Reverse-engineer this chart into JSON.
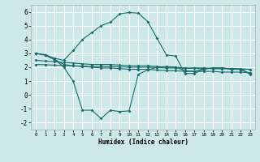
{
  "xlabel": "Humidex (Indice chaleur)",
  "xlim": [
    -0.5,
    23.5
  ],
  "ylim": [
    -2.5,
    6.5
  ],
  "xticks": [
    0,
    1,
    2,
    3,
    4,
    5,
    6,
    7,
    8,
    9,
    10,
    11,
    12,
    13,
    14,
    15,
    16,
    17,
    18,
    19,
    20,
    21,
    22,
    23
  ],
  "yticks": [
    -2,
    -1,
    0,
    1,
    2,
    3,
    4,
    5,
    6
  ],
  "bg_color": "#cde8e8",
  "grid_color": "#ffffff",
  "line_color": "#1a6b6b",
  "curve1_x": [
    0,
    1,
    2,
    3,
    4,
    5,
    6,
    7,
    8,
    9,
    10,
    11,
    12,
    13,
    14,
    15,
    16,
    17,
    18,
    19,
    20,
    21,
    22,
    23
  ],
  "curve1_y": [
    3.0,
    2.9,
    2.65,
    2.5,
    3.2,
    4.0,
    4.5,
    5.0,
    5.25,
    5.85,
    5.95,
    5.9,
    5.3,
    4.1,
    2.9,
    2.8,
    1.55,
    1.55,
    1.85,
    1.95,
    1.95,
    1.85,
    1.85,
    1.5
  ],
  "curve2_x": [
    0,
    1,
    2,
    3,
    4,
    5,
    6,
    7,
    8,
    9,
    10,
    11,
    12,
    13,
    14,
    15,
    16,
    17,
    18,
    19,
    20,
    21,
    22,
    23
  ],
  "curve2_y": [
    3.0,
    2.85,
    2.55,
    2.2,
    2.1,
    2.05,
    2.0,
    1.95,
    1.95,
    1.9,
    1.85,
    1.85,
    1.85,
    1.8,
    1.75,
    1.75,
    1.7,
    1.7,
    1.7,
    1.7,
    1.65,
    1.65,
    1.65,
    1.6
  ],
  "curve3_x": [
    0,
    1,
    2,
    3,
    4,
    5,
    6,
    7,
    8,
    9,
    10,
    11,
    12,
    13,
    14,
    15,
    16,
    17,
    18,
    19,
    20,
    21,
    22,
    23
  ],
  "curve3_y": [
    2.5,
    2.45,
    2.4,
    2.35,
    2.3,
    2.25,
    2.2,
    2.2,
    2.2,
    2.15,
    2.1,
    2.1,
    2.1,
    2.05,
    2.0,
    2.0,
    1.95,
    1.95,
    1.95,
    1.9,
    1.9,
    1.9,
    1.85,
    1.85
  ],
  "curve4_x": [
    0,
    1,
    2,
    3,
    4,
    5,
    6,
    7,
    8,
    9,
    10,
    11,
    12,
    13,
    14,
    15,
    16,
    17,
    18,
    19,
    20,
    21,
    22,
    23
  ],
  "curve4_y": [
    2.2,
    2.18,
    2.15,
    2.12,
    2.1,
    2.08,
    2.05,
    2.05,
    2.05,
    2.02,
    2.0,
    2.0,
    2.0,
    1.98,
    1.95,
    1.95,
    1.92,
    1.92,
    1.92,
    1.9,
    1.9,
    1.9,
    1.88,
    1.85
  ],
  "curve5_x": [
    0,
    1,
    2,
    3,
    4,
    5,
    6,
    7,
    8,
    9,
    10,
    11,
    12,
    13,
    14,
    15,
    16,
    17,
    18,
    19,
    20,
    21,
    22,
    23
  ],
  "curve5_y": [
    3.0,
    2.9,
    2.6,
    2.0,
    1.0,
    -1.1,
    -1.1,
    -1.7,
    -1.1,
    -1.2,
    -1.15,
    1.5,
    1.8,
    2.0,
    2.05,
    2.0,
    1.75,
    1.7,
    1.9,
    1.95,
    1.95,
    1.9,
    1.85,
    1.55
  ],
  "figsize": [
    3.2,
    2.0
  ],
  "dpi": 100
}
